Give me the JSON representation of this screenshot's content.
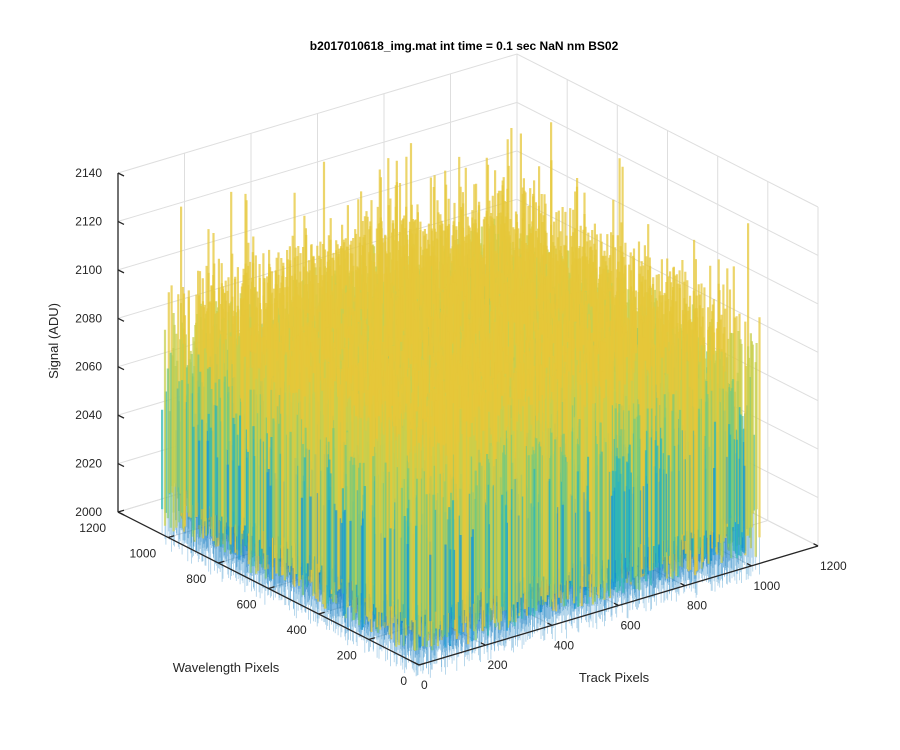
{
  "chart_data": {
    "type": "surface",
    "title": "b2017010618_img.mat int time = 0.1 sec  NaN nm BS02",
    "xlabel": "Track Pixels",
    "ylabel": "Wavelength Pixels",
    "zlabel": "Signal (ADU)",
    "xlim": [
      0,
      1200
    ],
    "ylim": [
      0,
      1200
    ],
    "zlim": [
      2000,
      2140
    ],
    "x_ticks": [
      "0",
      "200",
      "400",
      "600",
      "800",
      "1000",
      "1200"
    ],
    "y_ticks": [
      "0",
      "200",
      "400",
      "600",
      "800",
      "1000",
      "1200"
    ],
    "z_ticks": [
      "2000",
      "2020",
      "2040",
      "2060",
      "2080",
      "2100",
      "2120",
      "2140"
    ],
    "surface": {
      "x_extent": [
        0,
        1024
      ],
      "y_extent": [
        0,
        1024
      ],
      "typical_range": [
        2020,
        2110
      ],
      "min_value": 2000,
      "max_value": 2140,
      "colormap": [
        "#0072bd",
        "#1a9ad6",
        "#2fb7b7",
        "#7cc97a",
        "#c8cf4d",
        "#e6c73a"
      ]
    },
    "grid": true
  }
}
